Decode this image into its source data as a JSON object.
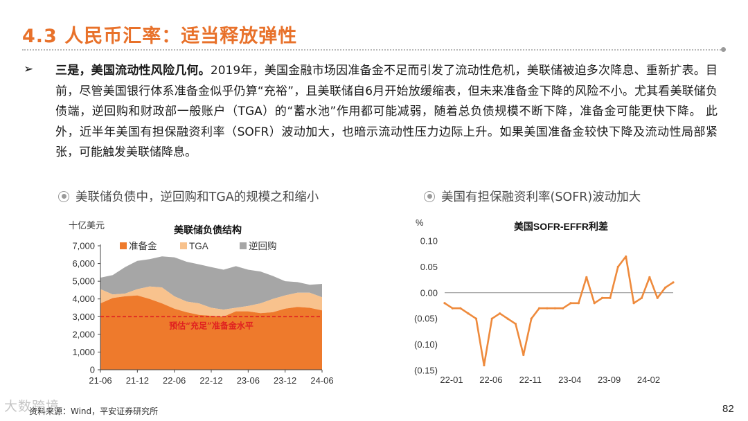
{
  "header": {
    "title": "4.3 人民币汇率：适当释放弹性"
  },
  "bullet": {
    "arrow": "➢",
    "lead": "三是，美国流动性风险几何。",
    "body": "2019年，美国金融市场因准备金不足而引发了流动性危机，美联储被迫多次降息、重新扩表。目前，尽管美国银行体系准备金似乎仍算“充裕”，且美联储自6月开始放缓缩表，但未来准备金下降的风险不小。尤其看美联储负债端，逆回购和财政部一般账户（TGA）的“蓄水池”作用都可能减弱，随着总负债规模不断下降，准备金可能更快下降。 此外，近半年美国有担保融资利率（SOFR）波动加大，也暗示流动性压力边际上升。如果美国准备金较快下降及流动性局部紧张，可能触发美联储降息。"
  },
  "left_panel": {
    "heading": "美联储负债中，逆回购和TGA的规模之和缩小"
  },
  "right_panel": {
    "heading": "美国有担保融资利率(SOFR)波动加大"
  },
  "footer": {
    "source": "资料来源：Wind，平安证券研究所",
    "page_number": "82",
    "watermark": "大数跨境"
  },
  "chart_data": [
    {
      "type": "area",
      "stacked": true,
      "title": "美联储负债结构",
      "unit": "十亿美元",
      "x_ticks": [
        "21-06",
        "21-12",
        "22-06",
        "22-12",
        "23-06",
        "23-12",
        "24-06"
      ],
      "x_range": [
        "2021-06",
        "2024-06"
      ],
      "ylim": [
        0,
        7000
      ],
      "y_ticks": [
        0,
        1000,
        2000,
        3000,
        4000,
        5000,
        6000,
        7000
      ],
      "y_tick_labels": [
        "0",
        "1,000",
        "2,000",
        "3,000",
        "4,000",
        "5,000",
        "6,000",
        "7,000"
      ],
      "legend": "top",
      "x": [
        "2021-06",
        "2021-08",
        "2021-10",
        "2021-12",
        "2022-02",
        "2022-04",
        "2022-06",
        "2022-08",
        "2022-10",
        "2022-12",
        "2023-02",
        "2023-04",
        "2023-06",
        "2023-08",
        "2023-10",
        "2023-12",
        "2024-02",
        "2024-04",
        "2024-06"
      ],
      "series": [
        {
          "name": "准备金",
          "color": "#ee7a2c",
          "values": [
            3750,
            4050,
            4150,
            4200,
            4000,
            3750,
            3450,
            3250,
            3100,
            3050,
            3000,
            3300,
            3300,
            3200,
            3250,
            3450,
            3550,
            3500,
            3350
          ]
        },
        {
          "name": "TGA",
          "color": "#f8c28d",
          "values": [
            800,
            200,
            150,
            350,
            700,
            900,
            700,
            600,
            650,
            450,
            400,
            200,
            300,
            550,
            750,
            750,
            800,
            850,
            750
          ]
        },
        {
          "name": "逆回购",
          "color": "#a6a6a6",
          "values": [
            650,
            1100,
            1500,
            1600,
            1550,
            1750,
            2200,
            2250,
            2200,
            2300,
            2250,
            2350,
            2050,
            1800,
            1300,
            800,
            600,
            450,
            750
          ]
        }
      ],
      "reference_line": {
        "value": 3000,
        "label": "预估“充足”准备金水平",
        "color": "#e02020"
      }
    },
    {
      "type": "line",
      "title": "美国SOFR-EFFR利差",
      "unit": "%",
      "x_ticks": [
        "22-01",
        "22-06",
        "22-11",
        "23-04",
        "23-09",
        "24-02"
      ],
      "x_range": [
        "2022-01",
        "2024-06"
      ],
      "ylim": [
        -0.15,
        0.1
      ],
      "y_ticks": [
        0.1,
        0.05,
        0.0,
        -0.05,
        -0.1,
        -0.15
      ],
      "y_tick_labels": [
        "0.10",
        "0.05",
        "0.00",
        "(0.05)",
        "(0.10)",
        "(0.15)"
      ],
      "series": [
        {
          "name": "SOFR-EFFR",
          "color": "#ee8a3c",
          "x": [
            "2022-01",
            "2022-02",
            "2022-03",
            "2022-04",
            "2022-05",
            "2022-06",
            "2022-07",
            "2022-08",
            "2022-09",
            "2022-10",
            "2022-11",
            "2022-12",
            "2023-01",
            "2023-02",
            "2023-03",
            "2023-04",
            "2023-05",
            "2023-06",
            "2023-07",
            "2023-08",
            "2023-09",
            "2023-10",
            "2023-11",
            "2023-12",
            "2024-01",
            "2024-02",
            "2024-03",
            "2024-04",
            "2024-05",
            "2024-06"
          ],
          "values": [
            -0.02,
            -0.03,
            -0.03,
            -0.04,
            -0.05,
            -0.14,
            -0.05,
            -0.04,
            -0.05,
            -0.06,
            -0.12,
            -0.05,
            -0.03,
            -0.03,
            -0.03,
            -0.03,
            -0.02,
            -0.02,
            0.03,
            -0.02,
            -0.01,
            -0.01,
            0.05,
            0.07,
            -0.02,
            -0.01,
            0.03,
            -0.01,
            0.01,
            0.02
          ]
        }
      ]
    }
  ]
}
